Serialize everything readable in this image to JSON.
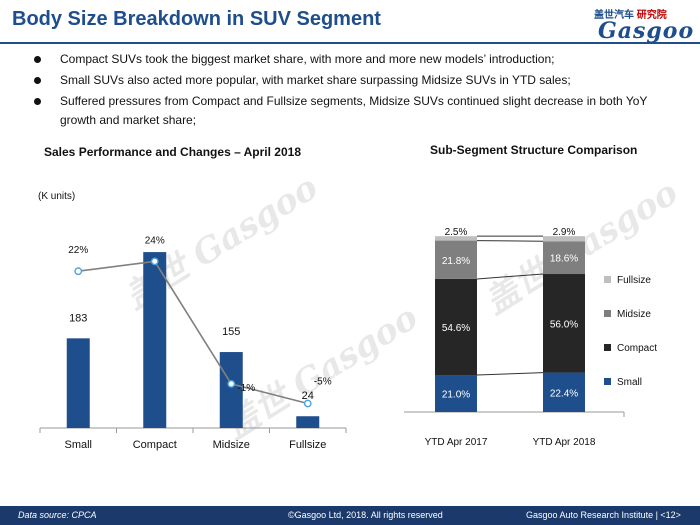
{
  "title": "Body Size Breakdown in SUV Segment",
  "logo": {
    "top_text": "盖世汽车",
    "top_text_2": "研究院",
    "word": "Gasgoo"
  },
  "bullets": [
    "Compact SUVs took the biggest market share, with more and more new models’ introduction;",
    "Small SUVs also acted more popular, with market share surpassing Midsize SUVs in YTD sales;",
    "Suffered pressures from Compact and Fullsize segments, Midsize SUVs continued slight decrease in both YoY growth and market share;"
  ],
  "left_heading": "Sales Performance and Changes – April 2018",
  "right_heading": "Sub-Segment Structure Comparison",
  "watermark": "盖世 Gasgoo",
  "footer": {
    "source": "Data source: CPCA",
    "copyright": "©Gasgoo Ltd, 2018.  All rights reserved",
    "institute": "Gasgoo Auto Research Institute  |  <12>"
  },
  "colors": {
    "bar": "#1f4e8c",
    "line": "#808080",
    "marker_fill": "#ffffff",
    "marker_stroke": "#4aa3df",
    "small": "#1f4e8c",
    "compact": "#262626",
    "midsize": "#7f7f7f",
    "fullsize": "#bfbfbf"
  },
  "chart_data": [
    {
      "type": "bar",
      "title": "Sales Performance and Changes – April 2018",
      "unit_label": "(K units)",
      "categories": [
        "Small",
        "Compact",
        "Midsize",
        "Fullsize"
      ],
      "values": [
        183,
        null,
        155,
        24
      ],
      "value_labels": [
        "183",
        "",
        "155",
        "24"
      ],
      "estimated_values": [
        183,
        359,
        155,
        24
      ],
      "line_series": {
        "values": [
          22,
          24,
          -1,
          -5
        ],
        "labels": [
          "22%",
          "24%",
          "-1%",
          "-5%"
        ]
      },
      "bar_ylim": [
        0,
        400
      ],
      "line_ylim": [
        -10,
        30
      ]
    },
    {
      "type": "bar",
      "stacked": true,
      "title": "Sub-Segment Structure Comparison",
      "categories": [
        "YTD Apr 2017",
        "YTD Apr 2018"
      ],
      "series": [
        {
          "name": "Small",
          "values": [
            21.0,
            22.4
          ],
          "labels": [
            "21.0%",
            "22.4%"
          ]
        },
        {
          "name": "Compact",
          "values": [
            54.6,
            56.0
          ],
          "labels": [
            "54.6%",
            "56.0%"
          ]
        },
        {
          "name": "Midsize",
          "values": [
            21.8,
            18.6
          ],
          "labels": [
            "21.8%",
            "18.6%"
          ]
        },
        {
          "name": "Fullsize",
          "values": [
            2.5,
            2.9
          ],
          "labels": [
            "2.5%",
            "2.9%"
          ]
        }
      ],
      "legend": "right",
      "legend_order": [
        "Fullsize",
        "Midsize",
        "Compact",
        "Small"
      ]
    }
  ]
}
